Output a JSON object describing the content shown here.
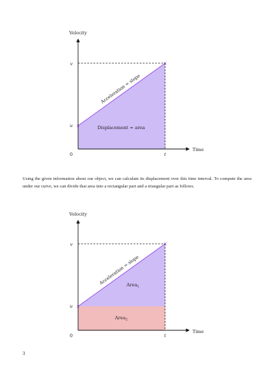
{
  "colors": {
    "fill_purple": "#cdbcf6",
    "fill_pink": "#f2bcbc",
    "line_purple": "#9c4fe8",
    "axis": "#111111"
  },
  "figure1": {
    "y_axis_label": "Velocity",
    "x_axis_label": "Time",
    "tick_v": "v",
    "tick_u": "u",
    "tick_zero": "0",
    "tick_t": "t",
    "slope_label": "Acceleration = slope",
    "area_label": "Displacement = area"
  },
  "paragraph": "Using the given information about our object, we can calculate its displacement over this time interval. To compute the area under our curve, we can divide that area into a rectangular part and a triangular part as follows.",
  "figure2": {
    "y_axis_label": "Velocity",
    "x_axis_label": "Time",
    "tick_v": "v",
    "tick_u": "u",
    "tick_zero": "0",
    "tick_t": "t",
    "slope_label": "Acceleration = slope",
    "area1_name": "Area",
    "area1_sub": "1",
    "area2_name": "Area",
    "area2_sub": "2"
  },
  "page_number": "3"
}
